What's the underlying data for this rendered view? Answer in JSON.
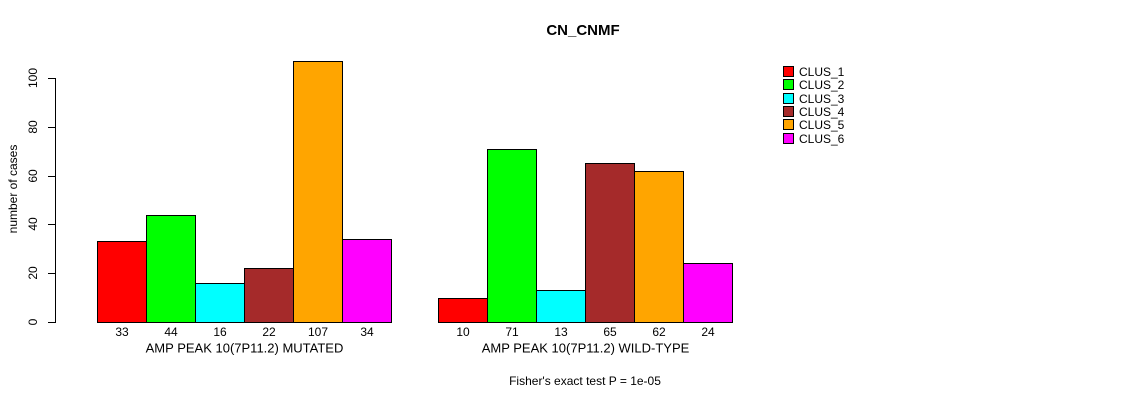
{
  "chart_data": {
    "type": "bar",
    "title": "CN_CNMF",
    "ylabel": "number of cases",
    "ylim": [
      0,
      100
    ],
    "yticks": [
      0,
      20,
      40,
      60,
      80,
      100
    ],
    "grid": false,
    "legend_position": "right",
    "legend": [
      {
        "label": "CLUS_1",
        "color": "#FF0000"
      },
      {
        "label": "CLUS_2",
        "color": "#00FF00"
      },
      {
        "label": "CLUS_3",
        "color": "#00FFFF"
      },
      {
        "label": "CLUS_4",
        "color": "#A52A2A"
      },
      {
        "label": "CLUS_5",
        "color": "#FFA500"
      },
      {
        "label": "CLUS_6",
        "color": "#FF00FF"
      }
    ],
    "groups": [
      {
        "label": "AMP PEAK 10(7P11.2) MUTATED",
        "values": [
          33,
          44,
          16,
          22,
          107,
          34
        ]
      },
      {
        "label": "AMP PEAK 10(7P11.2) WILD-TYPE",
        "values": [
          10,
          71,
          13,
          65,
          62,
          24
        ]
      }
    ],
    "footnote": "Fisher's exact test P = 1e-05"
  }
}
